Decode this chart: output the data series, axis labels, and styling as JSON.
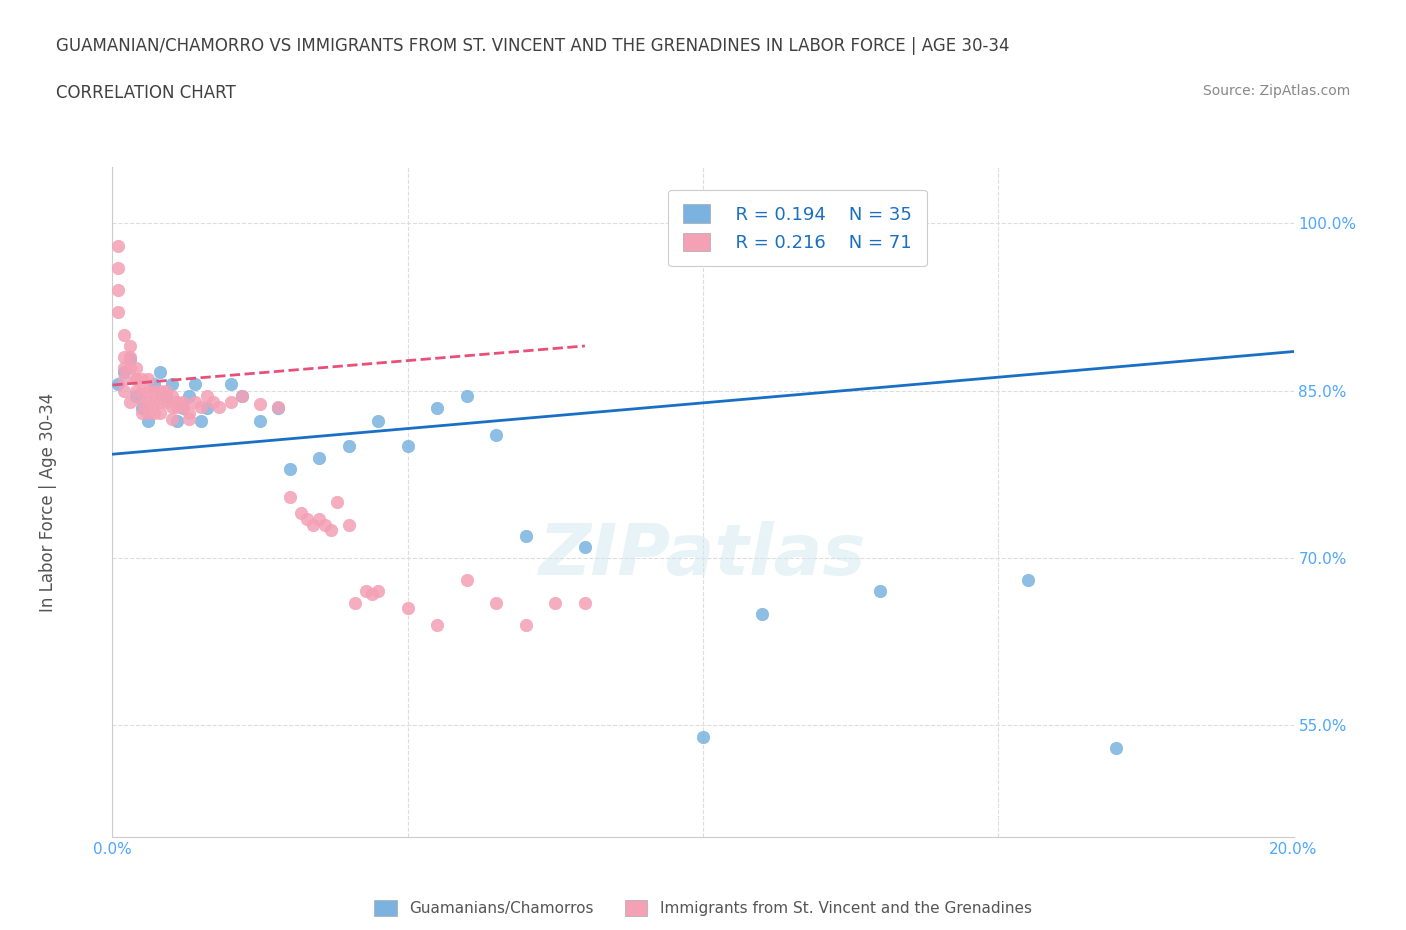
{
  "title_line1": "GUAMANIAN/CHAMORRO VS IMMIGRANTS FROM ST. VINCENT AND THE GRENADINES IN LABOR FORCE | AGE 30-34",
  "title_line2": "CORRELATION CHART",
  "source_text": "Source: ZipAtlas.com",
  "xlabel": "",
  "ylabel": "In Labor Force | Age 30-34",
  "watermark": "ZIPatlas",
  "x_min": 0.0,
  "x_max": 0.2,
  "y_min": 0.45,
  "y_max": 1.05,
  "x_ticks": [
    0.0,
    0.05,
    0.1,
    0.15,
    0.2
  ],
  "x_tick_labels": [
    "0.0%",
    "",
    "",
    "",
    "20.0%"
  ],
  "y_ticks": [
    0.55,
    0.7,
    0.85,
    1.0
  ],
  "y_tick_labels": [
    "55.0%",
    "70.0%",
    "85.0%",
    "100.0%"
  ],
  "blue_scatter_x": [
    0.001,
    0.002,
    0.003,
    0.004,
    0.005,
    0.006,
    0.007,
    0.008,
    0.009,
    0.01,
    0.011,
    0.012,
    0.013,
    0.014,
    0.015,
    0.016,
    0.02,
    0.022,
    0.025,
    0.028,
    0.03,
    0.035,
    0.04,
    0.045,
    0.05,
    0.055,
    0.06,
    0.065,
    0.07,
    0.08,
    0.1,
    0.11,
    0.13,
    0.155,
    0.17
  ],
  "blue_scatter_y": [
    0.856,
    0.867,
    0.878,
    0.845,
    0.834,
    0.823,
    0.856,
    0.867,
    0.845,
    0.856,
    0.823,
    0.834,
    0.845,
    0.856,
    0.823,
    0.834,
    0.856,
    0.845,
    0.823,
    0.834,
    0.78,
    0.79,
    0.8,
    0.823,
    0.8,
    0.834,
    0.845,
    0.81,
    0.72,
    0.71,
    0.54,
    0.65,
    0.67,
    0.68,
    0.53
  ],
  "pink_scatter_x": [
    0.001,
    0.001,
    0.001,
    0.001,
    0.002,
    0.002,
    0.002,
    0.002,
    0.002,
    0.003,
    0.003,
    0.003,
    0.003,
    0.004,
    0.004,
    0.004,
    0.004,
    0.005,
    0.005,
    0.005,
    0.005,
    0.006,
    0.006,
    0.006,
    0.006,
    0.007,
    0.007,
    0.007,
    0.008,
    0.008,
    0.008,
    0.009,
    0.009,
    0.01,
    0.01,
    0.01,
    0.011,
    0.011,
    0.012,
    0.012,
    0.013,
    0.013,
    0.014,
    0.015,
    0.016,
    0.017,
    0.018,
    0.02,
    0.022,
    0.025,
    0.028,
    0.03,
    0.032,
    0.033,
    0.034,
    0.035,
    0.036,
    0.037,
    0.038,
    0.04,
    0.041,
    0.043,
    0.044,
    0.045,
    0.05,
    0.055,
    0.06,
    0.065,
    0.07,
    0.075,
    0.08
  ],
  "pink_scatter_y": [
    0.98,
    0.96,
    0.94,
    0.92,
    0.9,
    0.88,
    0.87,
    0.86,
    0.85,
    0.84,
    0.89,
    0.88,
    0.87,
    0.86,
    0.87,
    0.86,
    0.85,
    0.86,
    0.85,
    0.84,
    0.83,
    0.86,
    0.85,
    0.84,
    0.83,
    0.85,
    0.84,
    0.83,
    0.85,
    0.84,
    0.83,
    0.85,
    0.84,
    0.845,
    0.835,
    0.825,
    0.84,
    0.835,
    0.84,
    0.835,
    0.83,
    0.825,
    0.84,
    0.835,
    0.845,
    0.84,
    0.835,
    0.84,
    0.845,
    0.838,
    0.835,
    0.755,
    0.74,
    0.735,
    0.73,
    0.735,
    0.73,
    0.725,
    0.75,
    0.73,
    0.66,
    0.67,
    0.668,
    0.67,
    0.655,
    0.64,
    0.68,
    0.66,
    0.64,
    0.66,
    0.66
  ],
  "blue_line_x": [
    0.0,
    0.2
  ],
  "blue_line_y": [
    0.793,
    0.885
  ],
  "pink_line_x": [
    0.0,
    0.08
  ],
  "pink_line_y": [
    0.855,
    0.89
  ],
  "blue_color": "#7ab3e0",
  "pink_color": "#f4a0b5",
  "blue_line_color": "#1a6fc4",
  "pink_line_color": "#e8507a",
  "R_blue": "R = 0.194",
  "N_blue": "N = 35",
  "R_pink": "R = 0.216",
  "N_pink": "N = 71",
  "legend_label_blue": "Guamanians/Chamorros",
  "legend_label_pink": "Immigrants from St. Vincent and the Grenadines",
  "bg_color": "#ffffff",
  "grid_color": "#dddddd",
  "title_color": "#404040",
  "axis_label_color": "#555555",
  "tick_label_color": "#4da6ff",
  "watermark_color": "#d0e8f0",
  "watermark_alpha": 0.5
}
